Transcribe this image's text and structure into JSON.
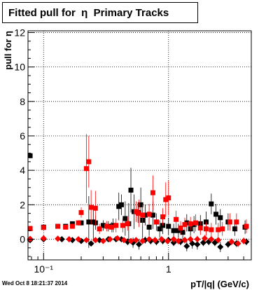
{
  "title": "Fitted pull for  η  Primary Tracks",
  "timestamp": "Wed Oct  8 18:21:37 2014",
  "chart_data": {
    "type": "scatter",
    "title": "Fitted pull for  η  Primary Tracks",
    "xlabel": "pT/|q| (GeV/c)",
    "ylabel": "pull for η",
    "xscale": "log",
    "xlim": [
      0.075,
      4.6
    ],
    "ylim": [
      -1.2,
      12.1
    ],
    "grid": true,
    "yticks": [
      0,
      2,
      4,
      6,
      8,
      10,
      12
    ],
    "xticks": [
      {
        "value": 0.1,
        "label": "10⁻¹"
      },
      {
        "value": 1,
        "label": "1"
      }
    ],
    "colors": {
      "black_series": "#000000",
      "red_series": "#ff0000"
    },
    "series": [
      {
        "marker": "square",
        "color": "#000000",
        "points": [
          [
            0.078,
            4.85,
            0.15
          ],
          [
            0.078,
            0.62,
            0.1
          ],
          [
            0.1,
            0.7,
            0.1
          ],
          [
            0.13,
            0.75,
            0.1
          ],
          [
            0.15,
            0.75,
            0.1
          ],
          [
            0.17,
            0.9,
            0.1
          ],
          [
            0.2,
            0.95,
            0.15
          ],
          [
            0.23,
            1.0,
            1.5
          ],
          [
            0.25,
            1.0,
            1.0
          ],
          [
            0.26,
            0.95,
            0.4
          ],
          [
            0.3,
            0.8,
            0.3
          ],
          [
            0.33,
            0.75,
            0.3
          ],
          [
            0.36,
            0.8,
            0.4
          ],
          [
            0.4,
            1.9,
            0.8
          ],
          [
            0.42,
            2.0,
            0.6
          ],
          [
            0.45,
            1.2,
            1.0
          ],
          [
            0.48,
            0.9,
            1.2
          ],
          [
            0.5,
            2.85,
            1.3
          ],
          [
            0.53,
            1.6,
            1.0
          ],
          [
            0.57,
            1.55,
            0.6
          ],
          [
            0.6,
            2.0,
            1.0
          ],
          [
            0.62,
            1.1,
            1.0
          ],
          [
            0.65,
            1.4,
            0.6
          ],
          [
            0.7,
            0.7,
            0.5
          ],
          [
            0.75,
            1.4,
            0.8
          ],
          [
            0.8,
            1.0,
            0.5
          ],
          [
            0.85,
            0.6,
            0.5
          ],
          [
            0.9,
            0.8,
            0.5
          ],
          [
            1.0,
            0.75,
            0.5
          ],
          [
            1.1,
            0.5,
            0.4
          ],
          [
            1.2,
            0.5,
            0.4
          ],
          [
            1.3,
            0.4,
            0.4
          ],
          [
            1.4,
            0.95,
            0.5
          ],
          [
            1.5,
            0.6,
            0.4
          ],
          [
            1.6,
            0.85,
            0.5
          ],
          [
            1.8,
            0.9,
            0.5
          ],
          [
            2.0,
            1.0,
            0.6
          ],
          [
            2.2,
            2.05,
            0.6
          ],
          [
            2.4,
            1.45,
            0.6
          ],
          [
            2.6,
            1.25,
            0.5
          ],
          [
            3.0,
            1.0,
            0.5
          ],
          [
            3.4,
            0.6,
            0.4
          ],
          [
            4.1,
            0.7,
            0.4
          ]
        ]
      },
      {
        "marker": "square",
        "color": "#ff0000",
        "points": [
          [
            0.078,
            0.62,
            0.1
          ],
          [
            0.1,
            0.68,
            0.1
          ],
          [
            0.13,
            0.75,
            0.1
          ],
          [
            0.15,
            0.7,
            0.1
          ],
          [
            0.17,
            0.75,
            0.1
          ],
          [
            0.19,
            0.95,
            0.15
          ],
          [
            0.2,
            1.55,
            0.3
          ],
          [
            0.22,
            4.1,
            2.0
          ],
          [
            0.23,
            4.5,
            1.5
          ],
          [
            0.24,
            1.85,
            1.0
          ],
          [
            0.26,
            1.8,
            1.0
          ],
          [
            0.28,
            0.6,
            0.3
          ],
          [
            0.32,
            0.75,
            0.3
          ],
          [
            0.35,
            0.7,
            0.3
          ],
          [
            0.38,
            0.8,
            0.4
          ],
          [
            0.43,
            0.8,
            0.4
          ],
          [
            0.47,
            0.9,
            0.4
          ],
          [
            0.55,
            1.6,
            0.6
          ],
          [
            0.58,
            1.5,
            0.8
          ],
          [
            0.62,
            1.4,
            0.6
          ],
          [
            0.7,
            1.45,
            0.6
          ],
          [
            0.75,
            2.7,
            1.0
          ],
          [
            0.8,
            1.0,
            0.5
          ],
          [
            0.9,
            1.3,
            0.5
          ],
          [
            0.95,
            2.3,
            1.0
          ],
          [
            1.0,
            2.4,
            1.0
          ],
          [
            1.15,
            1.15,
            0.5
          ],
          [
            1.25,
            0.65,
            0.4
          ],
          [
            1.35,
            0.85,
            0.4
          ],
          [
            1.5,
            0.9,
            0.4
          ],
          [
            1.65,
            0.95,
            0.5
          ],
          [
            1.8,
            0.65,
            0.4
          ],
          [
            2.0,
            0.6,
            0.4
          ],
          [
            2.2,
            0.55,
            0.4
          ],
          [
            2.5,
            0.55,
            0.4
          ],
          [
            2.7,
            0.6,
            0.4
          ],
          [
            3.1,
            1.0,
            0.5
          ],
          [
            3.5,
            1.0,
            0.5
          ],
          [
            4.2,
            0.75,
            0.4
          ]
        ]
      },
      {
        "marker": "diamond",
        "color": "#000000",
        "points": [
          [
            0.078,
            -0.05,
            0.05
          ],
          [
            0.1,
            0.0,
            0.05
          ],
          [
            0.14,
            0.0,
            0.05
          ],
          [
            0.17,
            -0.05,
            0.05
          ],
          [
            0.2,
            -0.1,
            0.1
          ],
          [
            0.24,
            -0.25,
            0.1
          ],
          [
            0.28,
            -0.05,
            0.1
          ],
          [
            0.33,
            0.0,
            0.1
          ],
          [
            0.38,
            0.0,
            0.1
          ],
          [
            0.42,
            0.0,
            0.15
          ],
          [
            0.47,
            -0.15,
            0.2
          ],
          [
            0.52,
            -0.2,
            0.3
          ],
          [
            0.58,
            -0.3,
            0.3
          ],
          [
            0.65,
            -0.05,
            0.2
          ],
          [
            0.72,
            -0.1,
            0.2
          ],
          [
            0.8,
            -0.15,
            0.2
          ],
          [
            0.9,
            -0.1,
            0.2
          ],
          [
            1.0,
            -0.05,
            0.2
          ],
          [
            1.1,
            -0.2,
            0.2
          ],
          [
            1.25,
            -0.15,
            0.2
          ],
          [
            1.4,
            -0.4,
            0.3
          ],
          [
            1.55,
            -0.25,
            0.3
          ],
          [
            1.7,
            -0.3,
            0.3
          ],
          [
            1.9,
            -0.2,
            0.2
          ],
          [
            2.1,
            -0.15,
            0.2
          ],
          [
            2.35,
            -0.2,
            0.2
          ],
          [
            2.6,
            -0.45,
            0.3
          ],
          [
            3.0,
            -0.3,
            0.2
          ],
          [
            3.5,
            -0.25,
            0.2
          ],
          [
            4.2,
            -0.15,
            0.2
          ]
        ]
      },
      {
        "marker": "diamond",
        "color": "#ff0000",
        "points": [
          [
            0.078,
            0.02,
            0.05
          ],
          [
            0.1,
            0.05,
            0.05
          ],
          [
            0.13,
            0.03,
            0.05
          ],
          [
            0.16,
            0.0,
            0.05
          ],
          [
            0.19,
            0.0,
            0.05
          ],
          [
            0.22,
            -0.05,
            0.1
          ],
          [
            0.26,
            -0.05,
            0.1
          ],
          [
            0.3,
            -0.1,
            0.15
          ],
          [
            0.34,
            0.0,
            0.1
          ],
          [
            0.39,
            0.05,
            0.1
          ],
          [
            0.44,
            -0.05,
            0.15
          ],
          [
            0.5,
            -0.1,
            0.15
          ],
          [
            0.55,
            -0.05,
            0.15
          ],
          [
            0.62,
            -0.1,
            0.2
          ],
          [
            0.7,
            0.0,
            0.15
          ],
          [
            0.78,
            -0.05,
            0.2
          ],
          [
            0.88,
            0.0,
            0.15
          ],
          [
            0.98,
            -0.1,
            0.2
          ],
          [
            1.1,
            0.0,
            0.2
          ],
          [
            1.2,
            -0.1,
            0.2
          ],
          [
            1.35,
            -0.05,
            0.2
          ],
          [
            1.5,
            0.0,
            0.2
          ],
          [
            1.7,
            0.0,
            0.2
          ],
          [
            1.95,
            0.05,
            0.2
          ],
          [
            2.2,
            0.0,
            0.2
          ],
          [
            2.5,
            -0.05,
            0.2
          ],
          [
            3.2,
            -0.15,
            0.2
          ],
          [
            3.6,
            -0.25,
            0.2
          ],
          [
            4.0,
            -0.1,
            0.2
          ]
        ]
      }
    ]
  }
}
